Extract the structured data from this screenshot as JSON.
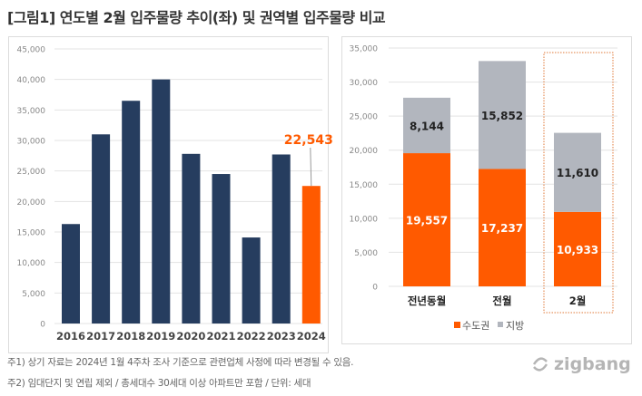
{
  "title": "[그림1]  연도별 2월 입주물량 추이(좌) 및 권역별 입주물량 비교",
  "notes": [
    "주1) 상기 자료는 2024년 1월 4주차 조사 기준으로 관련업체 사정에 따라 변경될 수 있음.",
    "주2) 임대단지 및 연립 제외 / 총세대수 30세대 이상 아파트만 포함 / 단위: 세대"
  ],
  "logo": "zigbang",
  "chart_data": [
    {
      "type": "bar",
      "categories": [
        "2016",
        "2017",
        "2018",
        "2019",
        "2020",
        "2021",
        "2022",
        "2023",
        "2024"
      ],
      "values": [
        16300,
        31000,
        36500,
        40000,
        27800,
        24500,
        14100,
        27701,
        22543
      ],
      "highlight_index": 8,
      "annotation": "22,543",
      "ylim": [
        0,
        45000
      ],
      "yticks": [
        0,
        5000,
        10000,
        15000,
        20000,
        25000,
        30000,
        35000,
        40000,
        45000
      ],
      "ytick_labels": [
        "0",
        "5,000",
        "10,000",
        "15,000",
        "20,000",
        "25,000",
        "30,000",
        "35,000",
        "40,000",
        "45,000"
      ],
      "grid": true,
      "colors": {
        "bar": "#263d5f",
        "highlight": "#ff5a00"
      }
    },
    {
      "type": "bar",
      "stacked": true,
      "categories": [
        "전년동월",
        "전월",
        "2월"
      ],
      "series": [
        {
          "name": "수도권",
          "values": [
            19557,
            17237,
            10933
          ],
          "labels": [
            "19,557",
            "17,237",
            "10,933"
          ],
          "color": "#ff5a00"
        },
        {
          "name": "지방",
          "values": [
            8144,
            15852,
            11610
          ],
          "labels": [
            "8,144",
            "15,852",
            "11,610"
          ],
          "color": "#b2b6be"
        }
      ],
      "ylim": [
        0,
        35000
      ],
      "yticks": [
        0,
        5000,
        10000,
        15000,
        20000,
        25000,
        30000,
        35000
      ],
      "ytick_labels": [
        "0",
        "5,000",
        "10,000",
        "15,000",
        "20,000",
        "25,000",
        "30,000",
        "35,000"
      ],
      "grid": true,
      "legend": "bottom",
      "highlight_category": "2월"
    }
  ]
}
